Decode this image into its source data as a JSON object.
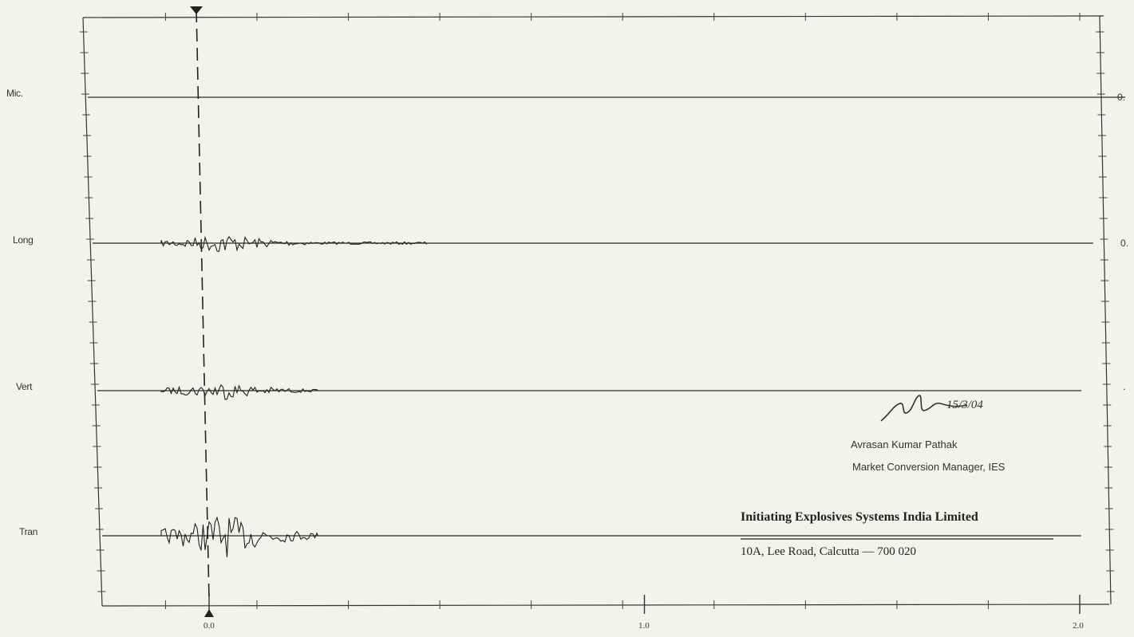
{
  "chart_data": {
    "type": "line",
    "title": "",
    "xlabel": "",
    "ylabel": "",
    "x_tick_labels": [
      "0.0",
      "1.0",
      "2.0"
    ],
    "x_ticks": [
      0.0,
      1.0,
      2.0
    ],
    "xlim": [
      -0.11,
      2.0
    ],
    "trigger_marker_x": 0.0,
    "grid": false,
    "series": [
      {
        "name": "Mic",
        "label": "Mic.",
        "peak_amplitude": 0.0,
        "activity_window": [
          0.0,
          0.0
        ]
      },
      {
        "name": "Long",
        "label": "Long",
        "peak_amplitude": 0.45,
        "activity_window": [
          -0.11,
          0.5
        ]
      },
      {
        "name": "Vert",
        "label": "Vert",
        "peak_amplitude": 0.4,
        "activity_window": [
          -0.11,
          0.25
        ]
      },
      {
        "name": "Tran",
        "label": "Tran",
        "peak_amplitude": 1.0,
        "activity_window": [
          -0.11,
          0.25
        ]
      }
    ],
    "right_scale_labels": [
      "0.",
      "0.",
      "."
    ]
  },
  "signature": {
    "date": "15/3/04",
    "name": "Avrasan Kumar Pathak",
    "role": "Market Conversion Manager, IES"
  },
  "company": {
    "name": "Initiating Explosives Systems India Limited",
    "address": "10A, Lee Road, Calcutta — 700 020"
  }
}
